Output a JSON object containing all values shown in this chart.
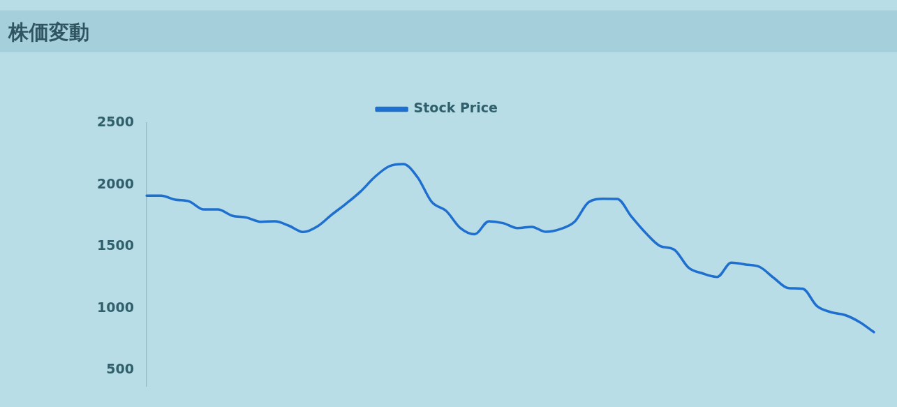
{
  "chart_data": {
    "type": "line",
    "title": "株価変動",
    "categories": [
      null,
      null,
      null,
      null,
      null,
      null,
      null,
      null,
      null,
      null,
      null,
      null,
      null,
      null,
      null,
      null,
      null,
      null,
      null,
      null,
      null,
      null,
      null,
      null,
      null,
      null,
      null,
      null,
      null,
      null,
      null,
      null,
      null,
      null,
      null,
      null,
      null,
      null,
      null,
      null,
      null,
      null,
      null,
      null,
      null,
      null,
      null,
      null,
      null,
      null,
      null,
      null
    ],
    "series": [
      {
        "name": "Stock Price",
        "color": "#1f6fcf",
        "values": [
          1912,
          1912,
          1880,
          1865,
          1800,
          1800,
          1750,
          1735,
          1701,
          1705,
          1668,
          1618,
          1665,
          1760,
          1848,
          1945,
          2063,
          2149,
          2167,
          2060,
          1860,
          1789,
          1650,
          1600,
          1705,
          1690,
          1650,
          1660,
          1620,
          1642,
          1700,
          1860,
          1886,
          1885,
          1742,
          1610,
          1505,
          1475,
          1330,
          1283,
          1255,
          1370,
          1355,
          1335,
          1245,
          1165,
          1160,
          1020,
          970,
          946,
          890,
          809
        ]
      }
    ],
    "ylim": [
      370,
      2500
    ],
    "yticks": [
      500,
      1000,
      1500,
      2000,
      2500
    ],
    "grid": false,
    "legend": "top",
    "marker": "none",
    "line_style": "solid",
    "tick_labels": "y"
  }
}
